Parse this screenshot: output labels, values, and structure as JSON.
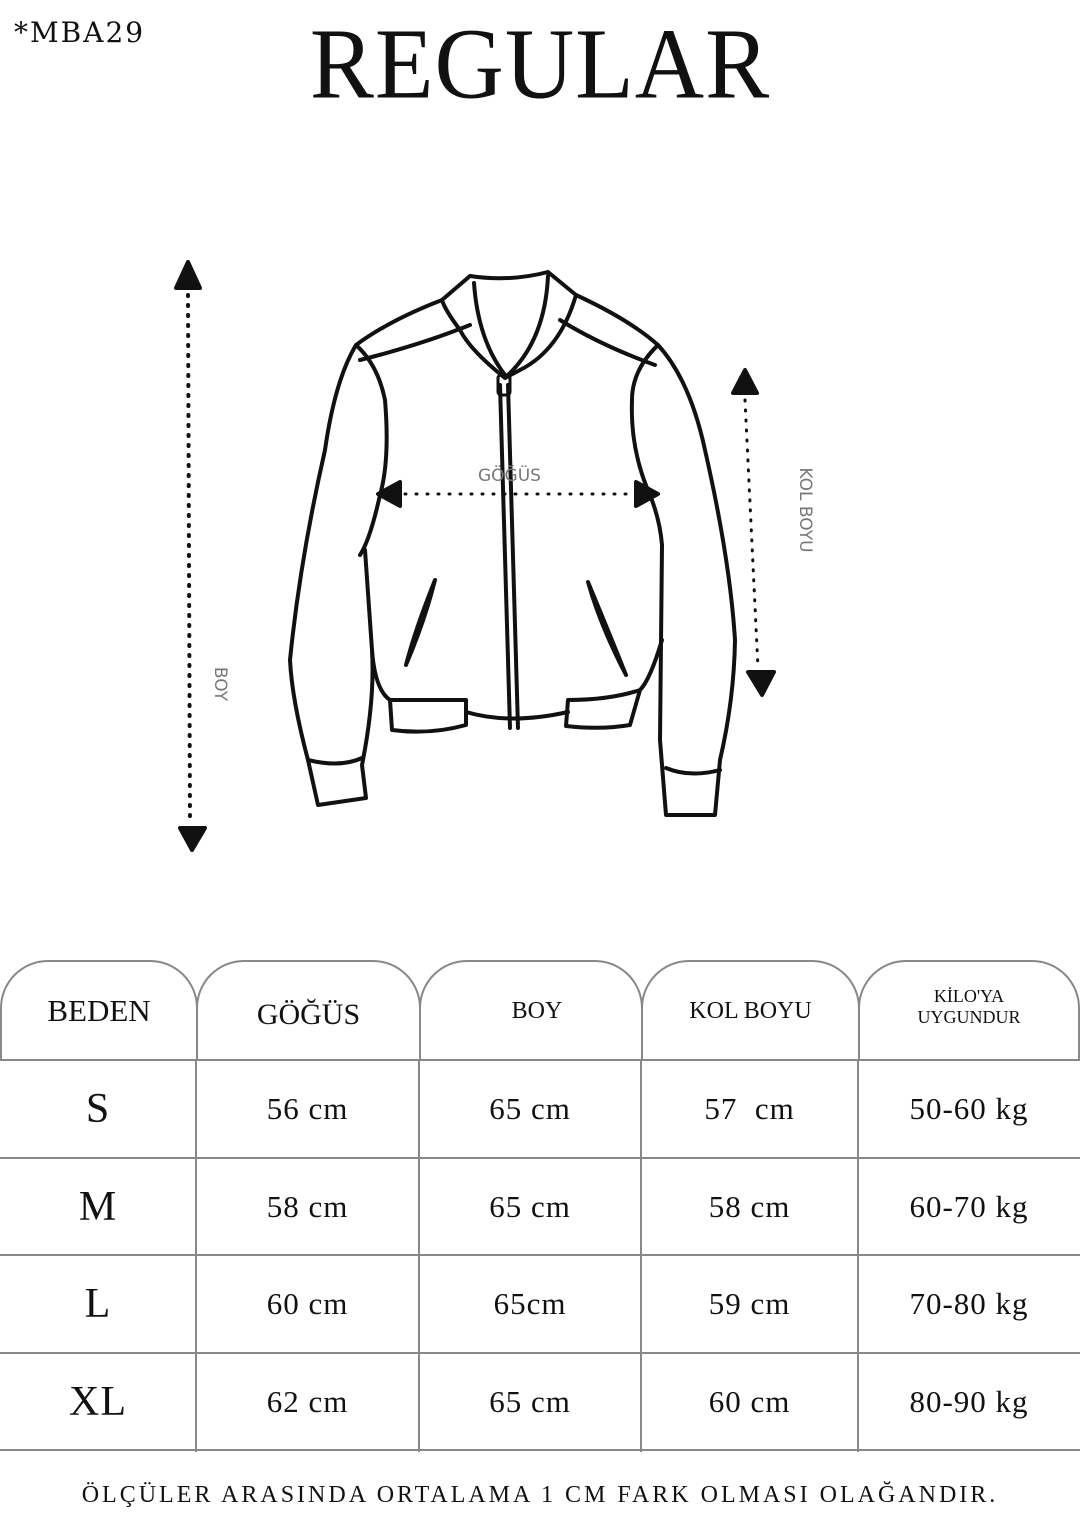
{
  "header": {
    "code": "*MBA29",
    "title": "REGULAR"
  },
  "diagram": {
    "chest_label": "GÖĞÜS",
    "sleeve_label": "KOL BOYU",
    "length_label": "BOY"
  },
  "table": {
    "columns": [
      "BEDEN",
      "GÖĞÜS",
      "BOY",
      "KOL BOYU",
      "KİLO'YA UYGUNDUR"
    ],
    "weight_header_line1": "KİLO'YA",
    "weight_header_line2": "UYGUNDUR",
    "rows": [
      [
        "S",
        "56 cm",
        "65 cm",
        "57  cm",
        "50-60 kg"
      ],
      [
        "M",
        "58 cm",
        "65 cm",
        "58 cm",
        "60-70 kg"
      ],
      [
        "L",
        "60 cm",
        "65cm",
        "59 cm",
        "70-80 kg"
      ],
      [
        "XL",
        "62 cm",
        "65 cm",
        "60 cm",
        "80-90 kg"
      ]
    ]
  },
  "footer": {
    "note": "ÖLÇÜLER ARASINDA ORTALAMA 1 CM FARK OLMASI OLAĞANDIR."
  }
}
